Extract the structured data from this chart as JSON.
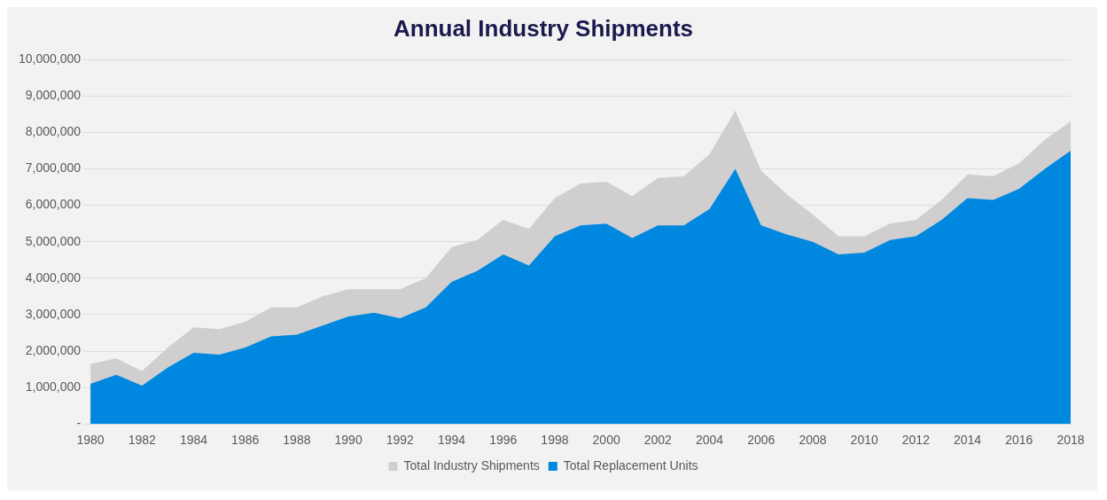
{
  "chart_data": {
    "type": "area",
    "title": "Annual Industry Shipments",
    "categories": [
      "1980",
      null,
      "1982",
      null,
      "1984",
      null,
      "1986",
      null,
      "1988",
      null,
      "1990",
      null,
      "1992",
      null,
      "1994",
      null,
      "1996",
      null,
      "1998",
      null,
      "2000",
      null,
      "2002",
      null,
      "2004",
      null,
      "2006",
      null,
      "2008",
      null,
      "2010",
      null,
      "2012",
      null,
      "2014",
      null,
      "2016",
      null,
      "2018"
    ],
    "series": [
      {
        "name": "Total Industry Shipments",
        "color": "#d0cece",
        "values": [
          1650000,
          1800000,
          1450000,
          2100000,
          2650000,
          2600000,
          2800000,
          3200000,
          3200000,
          3500000,
          3700000,
          3700000,
          3700000,
          4000000,
          4850000,
          5050000,
          5600000,
          5350000,
          6200000,
          6600000,
          6650000,
          6250000,
          6750000,
          6800000,
          7400000,
          8600000,
          6950000,
          6300000,
          5750000,
          5150000,
          5150000,
          5500000,
          5600000,
          6150000,
          6850000,
          6800000,
          7150000,
          7800000,
          8300000
        ]
      },
      {
        "name": "Total Replacement Units",
        "color": "#0088e0",
        "values": [
          1100000,
          1350000,
          1050000,
          1550000,
          1950000,
          1900000,
          2100000,
          2400000,
          2450000,
          2700000,
          2950000,
          3050000,
          2900000,
          3200000,
          3900000,
          4200000,
          4650000,
          4350000,
          5150000,
          5450000,
          5500000,
          5100000,
          5450000,
          5450000,
          5900000,
          7000000,
          5450000,
          5200000,
          5000000,
          4650000,
          4700000,
          5050000,
          5150000,
          5600000,
          6200000,
          6150000,
          6450000,
          7000000,
          7500000
        ]
      }
    ],
    "ylim": [
      0,
      10000000
    ],
    "yticks": [
      {
        "value": 0,
        "label": "-"
      },
      {
        "value": 1000000,
        "label": "1,000,000"
      },
      {
        "value": 2000000,
        "label": "2,000,000"
      },
      {
        "value": 3000000,
        "label": "3,000,000"
      },
      {
        "value": 4000000,
        "label": "4,000,000"
      },
      {
        "value": 5000000,
        "label": "5,000,000"
      },
      {
        "value": 6000000,
        "label": "6,000,000"
      },
      {
        "value": 7000000,
        "label": "7,000,000"
      },
      {
        "value": 8000000,
        "label": "8,000,000"
      },
      {
        "value": 9000000,
        "label": "9,000,000"
      },
      {
        "value": 10000000,
        "label": "10,000,000"
      }
    ],
    "grid": "y",
    "legend": "bottom"
  }
}
